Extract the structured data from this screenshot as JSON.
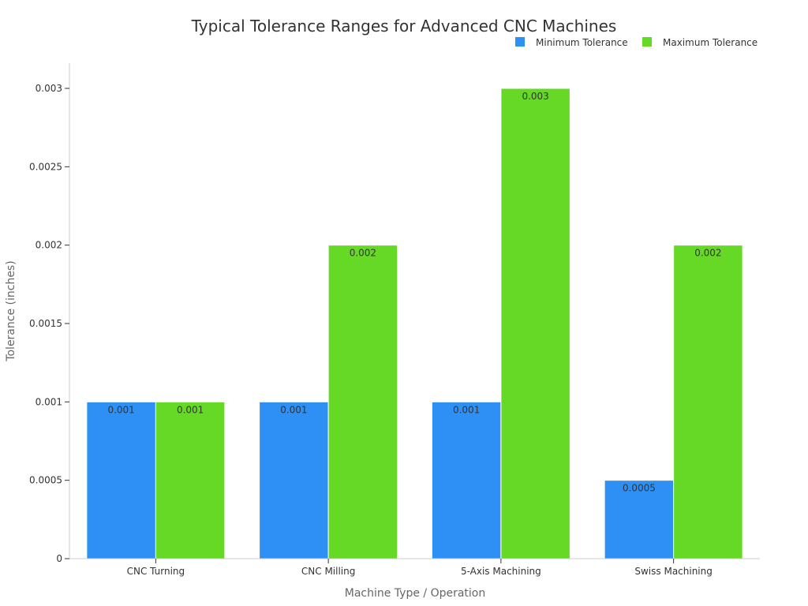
{
  "chart_data": {
    "type": "bar",
    "title": "Typical Tolerance Ranges for Advanced CNC Machines",
    "xlabel": "Machine Type / Operation",
    "ylabel": "Tolerance (inches)",
    "categories": [
      "CNC Turning",
      "CNC Milling",
      "5-Axis Machining",
      "Swiss Machining"
    ],
    "series": [
      {
        "name": "Minimum Tolerance",
        "values": [
          0.001,
          0.001,
          0.001,
          0.0005
        ],
        "value_labels": [
          "0.001",
          "0.001",
          "0.001",
          "0.0005"
        ],
        "color": "#2e90f5"
      },
      {
        "name": "Maximum Tolerance",
        "values": [
          0.001,
          0.002,
          0.003,
          0.002
        ],
        "value_labels": [
          "0.001",
          "0.002",
          "0.003",
          "0.002"
        ],
        "color": "#66d926"
      }
    ],
    "ylim": [
      0,
      0.003
    ],
    "yticks": [
      0,
      0.0005,
      0.001,
      0.0015,
      0.002,
      0.0025,
      0.003
    ],
    "ytick_labels": [
      "0",
      "0.0005",
      "0.001",
      "0.0015",
      "0.002",
      "0.0025",
      "0.003"
    ],
    "legend_position": "top-right",
    "grid": false
  }
}
